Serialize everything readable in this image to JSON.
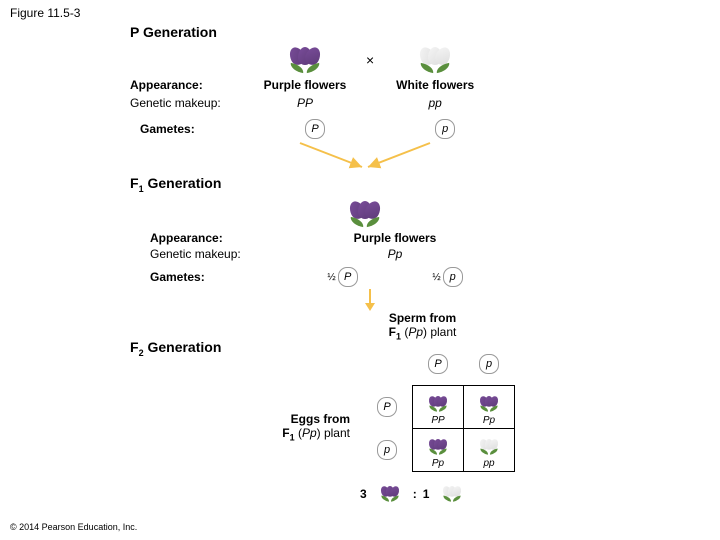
{
  "figure_label": "Figure 11.5-3",
  "copyright": "© 2014 Pearson Education, Inc.",
  "colors": {
    "purple": "#7a4d9a",
    "purple_dark": "#5d3a78",
    "white": "#f5f5f5",
    "white_shade": "#dddddd",
    "leaf": "#5a8f3d",
    "arrow": "#f5c04a"
  },
  "p_gen": {
    "title": "P Generation",
    "appearance_label": "Appearance:",
    "genetic_label": "Genetic makeup:",
    "gametes_label": "Gametes:",
    "left": {
      "appearance": "Purple flowers",
      "genotype": "PP",
      "gamete": "P",
      "flower_color": "purple"
    },
    "right": {
      "appearance": "White flowers",
      "genotype": "pp",
      "gamete": "p",
      "flower_color": "white"
    },
    "cross_symbol": "×"
  },
  "f1_gen": {
    "title_prefix": "F",
    "title_sub": "1",
    "title_suffix": " Generation",
    "appearance_label": "Appearance:",
    "genetic_label": "Genetic makeup:",
    "gametes_label": "Gametes:",
    "appearance": "Purple flowers",
    "genotype": "Pp",
    "flower_color": "purple",
    "gametes": [
      {
        "fraction": "½",
        "allele": "P"
      },
      {
        "fraction": "½",
        "allele": "p"
      }
    ]
  },
  "f2_gen": {
    "title_prefix": "F",
    "title_sub": "2",
    "title_suffix": " Generation",
    "sperm_label_l1": "Sperm from",
    "sperm_label_l2_pre": "F",
    "sperm_label_l2_sub": "1",
    "sperm_label_l2_post": " (Pp) plant",
    "eggs_label_l1": "Eggs from",
    "eggs_label_l2_pre": "F",
    "eggs_label_l2_sub": "1",
    "eggs_label_l2_post": " (Pp) plant",
    "col_headers": [
      "P",
      "p"
    ],
    "row_headers": [
      "P",
      "p"
    ],
    "cells": [
      [
        {
          "genotype": "PP",
          "flower_color": "purple"
        },
        {
          "genotype": "Pp",
          "flower_color": "purple"
        }
      ],
      [
        {
          "genotype": "Pp",
          "flower_color": "purple"
        },
        {
          "genotype": "pp",
          "flower_color": "white"
        }
      ]
    ],
    "ratio": {
      "left_num": "3",
      "left_color": "purple",
      "colon": ":",
      "right_num": "1",
      "right_color": "white"
    }
  }
}
